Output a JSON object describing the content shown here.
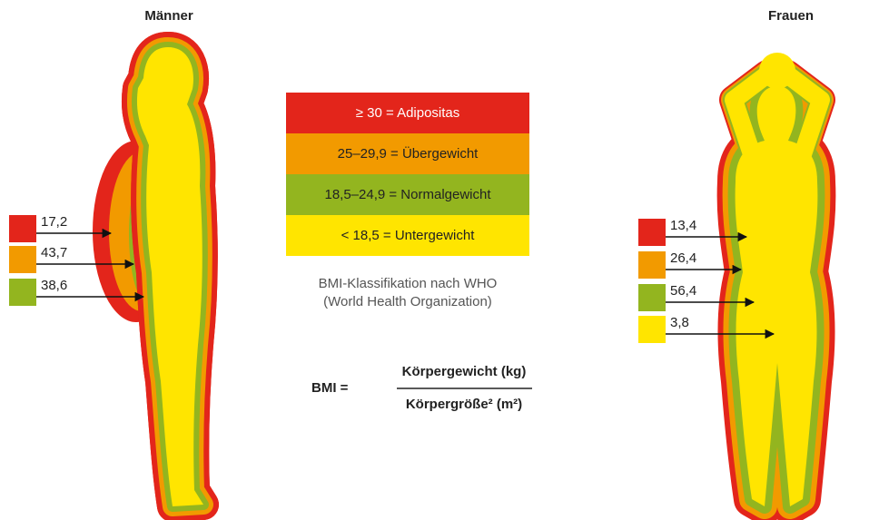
{
  "men": {
    "title": "Männer",
    "shares": [
      "17,2",
      "43,7",
      "38,6"
    ]
  },
  "women": {
    "title": "Frauen",
    "shares": [
      "13,4",
      "26,4",
      "56,4",
      "3,8"
    ]
  },
  "legend": {
    "items": [
      "≥ 30 = Adipositas",
      "25–29,9 = Übergewicht",
      "18,5–24,9 = Normalgewicht",
      "< 18,5 = Untergewicht"
    ],
    "caption": [
      "BMI-Klassifikation nach WHO",
      "(World Health Organization)"
    ]
  },
  "formula": {
    "label": "BMI =",
    "numerator": "Körpergewicht (kg)",
    "denominator": "Körpergröße² (m²)"
  }
}
